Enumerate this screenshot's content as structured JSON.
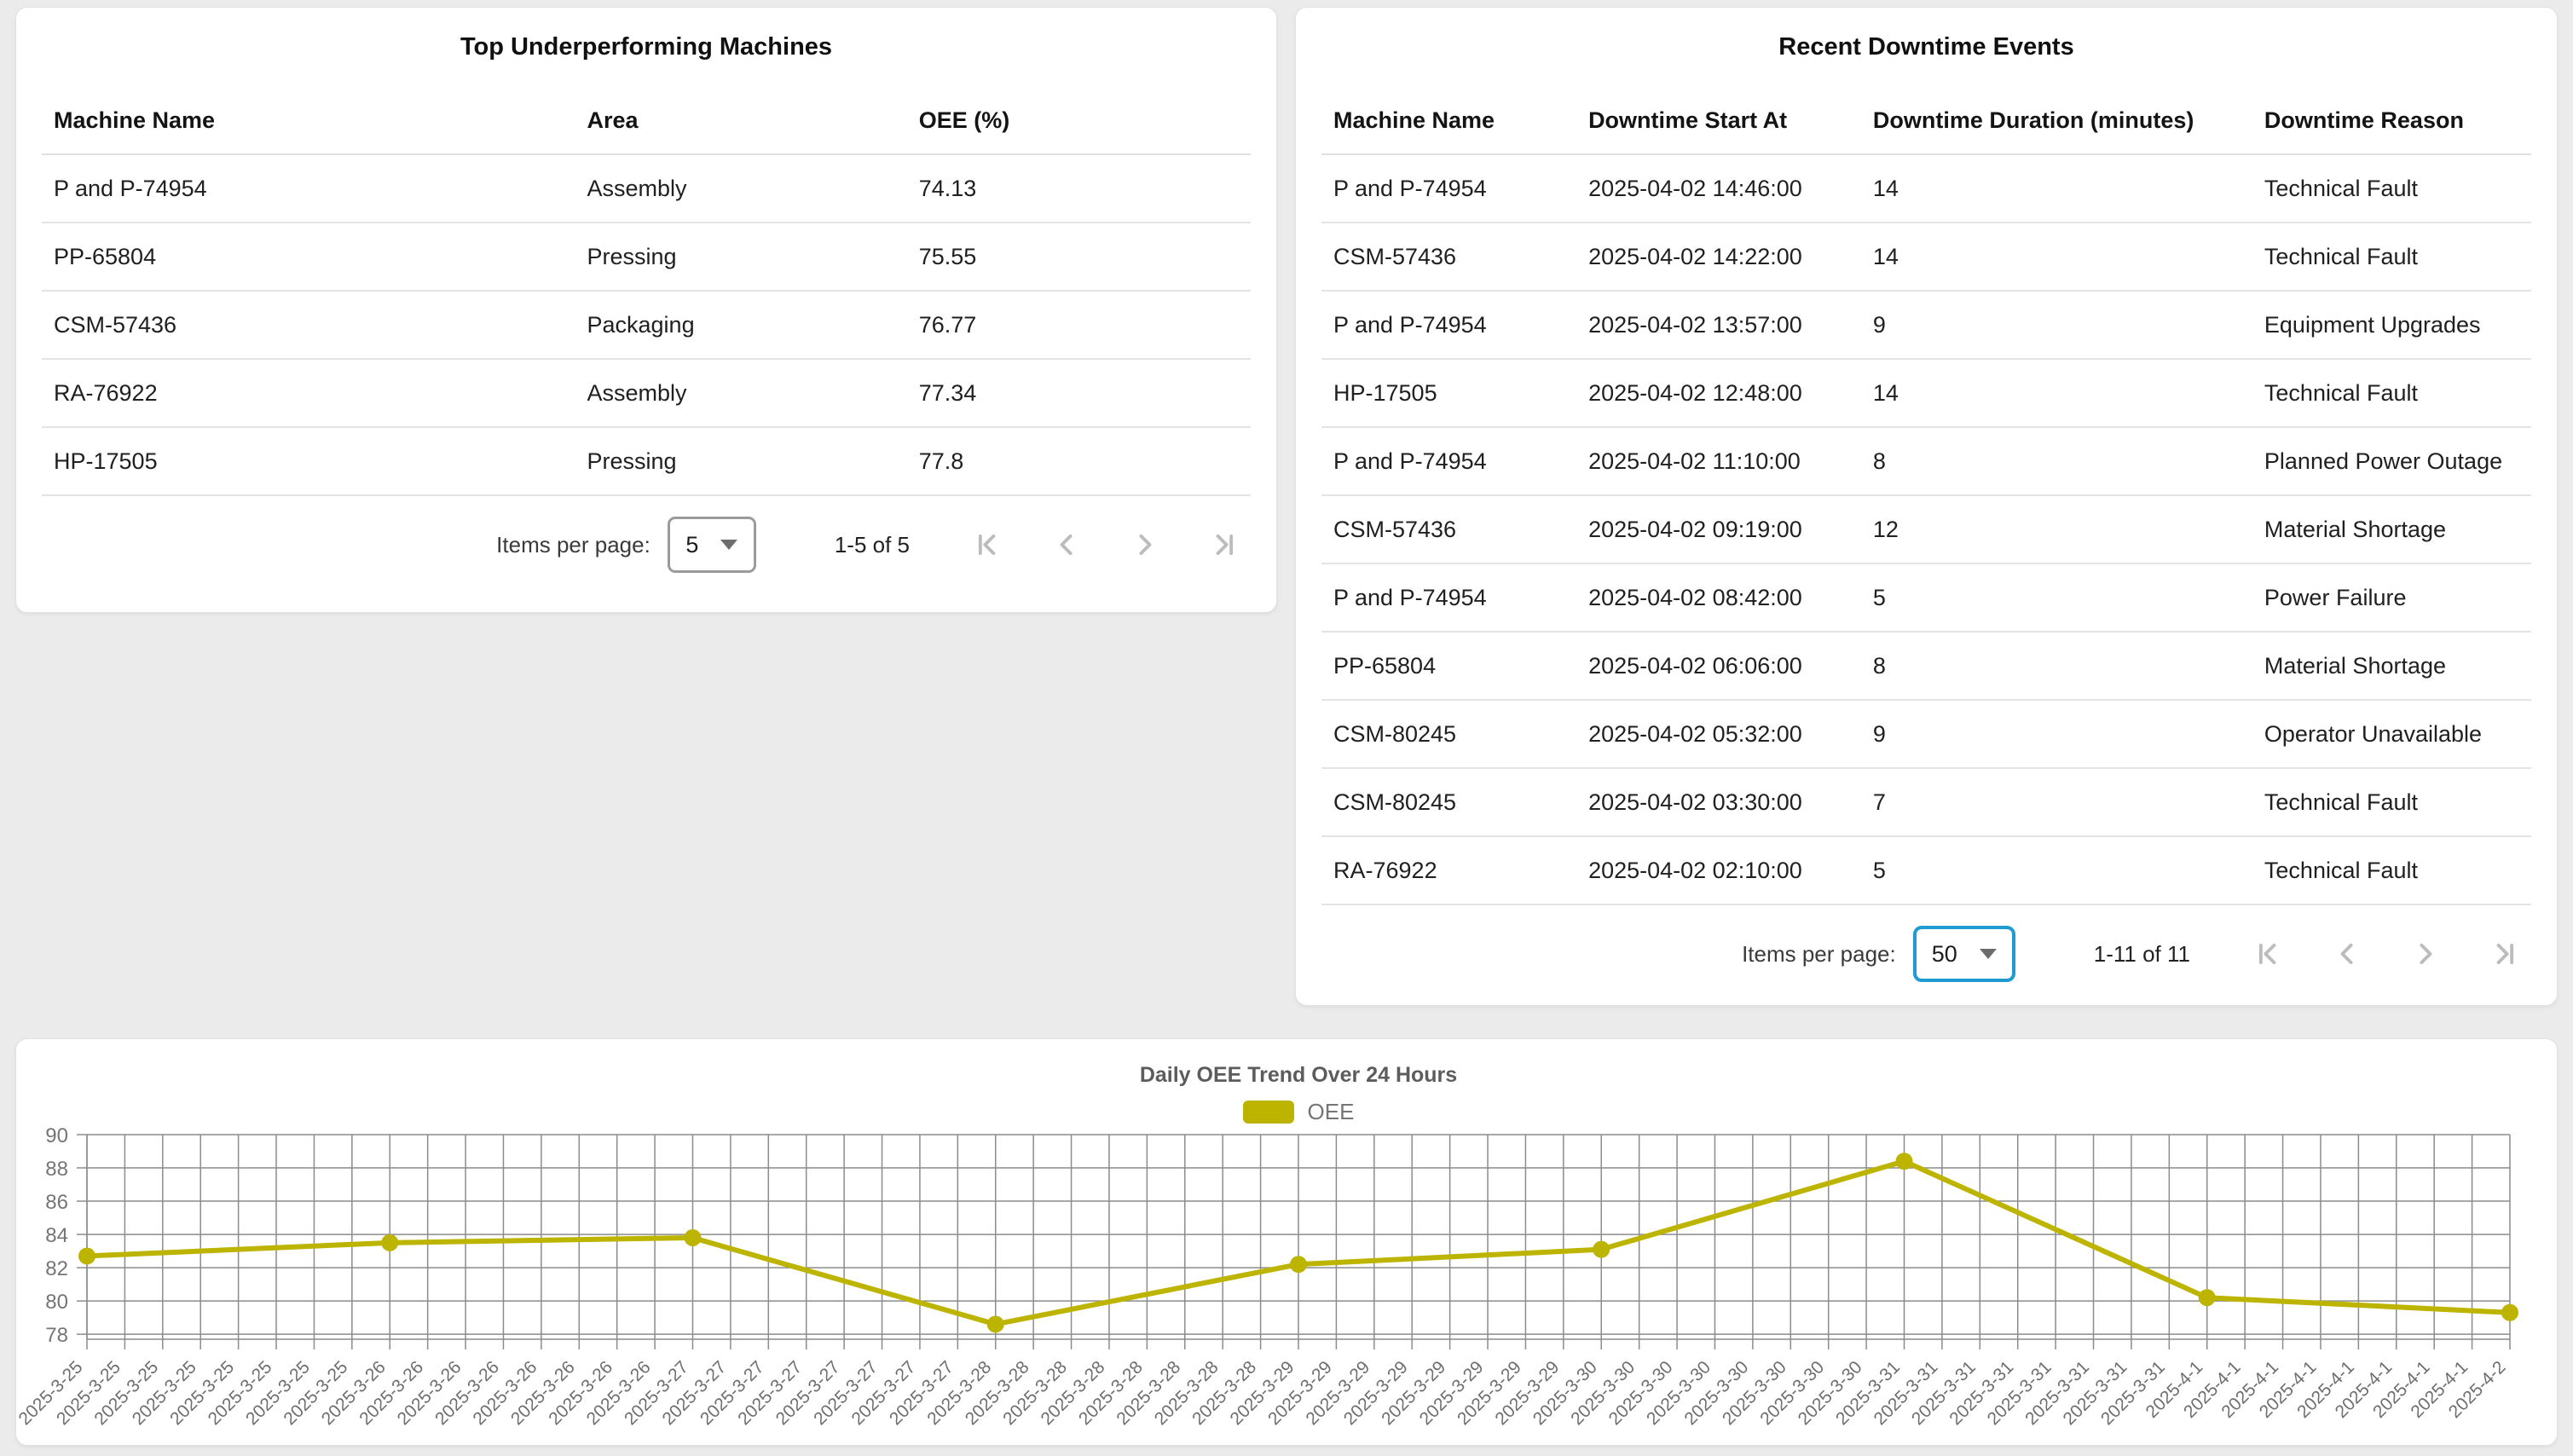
{
  "top_machines": {
    "title": "Top Underperforming Machines",
    "columns": [
      "Machine Name",
      "Area",
      "OEE (%)"
    ],
    "rows": [
      [
        "P and P-74954",
        "Assembly",
        "74.13"
      ],
      [
        "PP-65804",
        "Pressing",
        "75.55"
      ],
      [
        "CSM-57436",
        "Packaging",
        "76.77"
      ],
      [
        "RA-76922",
        "Assembly",
        "77.34"
      ],
      [
        "HP-17505",
        "Pressing",
        "77.8"
      ]
    ],
    "paginator": {
      "label": "Items per page:",
      "page_size": "5",
      "range": "1-5 of 5"
    }
  },
  "downtime_events": {
    "title": "Recent Downtime Events",
    "columns": [
      "Machine Name",
      "Downtime Start At",
      "Downtime Duration (minutes)",
      "Downtime Reason"
    ],
    "rows": [
      [
        "P and P-74954",
        "2025-04-02 14:46:00",
        "14",
        "Technical Fault"
      ],
      [
        "CSM-57436",
        "2025-04-02 14:22:00",
        "14",
        "Technical Fault"
      ],
      [
        "P and P-74954",
        "2025-04-02 13:57:00",
        "9",
        "Equipment Upgrades"
      ],
      [
        "HP-17505",
        "2025-04-02 12:48:00",
        "14",
        "Technical Fault"
      ],
      [
        "P and P-74954",
        "2025-04-02 11:10:00",
        "8",
        "Planned Power Outage"
      ],
      [
        "CSM-57436",
        "2025-04-02 09:19:00",
        "12",
        "Material Shortage"
      ],
      [
        "P and P-74954",
        "2025-04-02 08:42:00",
        "5",
        "Power Failure"
      ],
      [
        "PP-65804",
        "2025-04-02 06:06:00",
        "8",
        "Material Shortage"
      ],
      [
        "CSM-80245",
        "2025-04-02 05:32:00",
        "9",
        "Operator Unavailable"
      ],
      [
        "CSM-80245",
        "2025-04-02 03:30:00",
        "7",
        "Technical Fault"
      ],
      [
        "RA-76922",
        "2025-04-02 02:10:00",
        "5",
        "Technical Fault"
      ]
    ],
    "paginator": {
      "label": "Items per page:",
      "page_size": "50",
      "range": "1-11 of 11",
      "focus_color": "#1e9cd2"
    }
  },
  "chart_data": {
    "type": "line",
    "title": "Daily OEE Trend Over 24 Hours",
    "legend_label": "OEE",
    "series_color": "#bdb400",
    "x_dates": [
      "2025-3-25",
      "2025-3-26",
      "2025-3-27",
      "2025-3-28",
      "2025-3-29",
      "2025-3-30",
      "2025-3-31",
      "2025-4-1",
      "2025-4-2"
    ],
    "ticks_per_day": 8,
    "values": [
      82.7,
      83.5,
      83.8,
      78.6,
      82.2,
      83.1,
      88.4,
      80.2,
      79.3
    ],
    "yticks": [
      78,
      80,
      82,
      84,
      86,
      88,
      90
    ],
    "ylim": [
      77.7,
      90
    ],
    "grid": "on",
    "legend_position": "top-center"
  }
}
